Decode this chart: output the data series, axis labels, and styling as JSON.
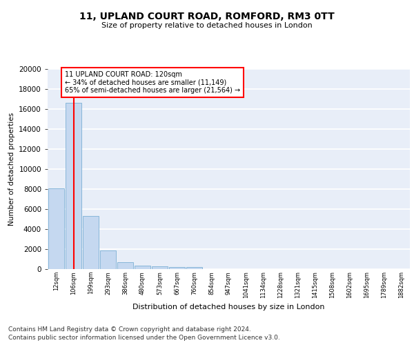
{
  "title1": "11, UPLAND COURT ROAD, ROMFORD, RM3 0TT",
  "title2": "Size of property relative to detached houses in London",
  "xlabel": "Distribution of detached houses by size in London",
  "ylabel": "Number of detached properties",
  "categories": [
    "12sqm",
    "106sqm",
    "199sqm",
    "293sqm",
    "386sqm",
    "480sqm",
    "573sqm",
    "667sqm",
    "760sqm",
    "854sqm",
    "947sqm",
    "1041sqm",
    "1134sqm",
    "1228sqm",
    "1321sqm",
    "1415sqm",
    "1508sqm",
    "1602sqm",
    "1695sqm",
    "1789sqm",
    "1882sqm"
  ],
  "values": [
    8100,
    16600,
    5300,
    1850,
    700,
    350,
    280,
    200,
    180,
    0,
    0,
    0,
    0,
    0,
    0,
    0,
    0,
    0,
    0,
    0,
    0
  ],
  "bar_color": "#c5d8f0",
  "bar_edge_color": "#7aafd4",
  "vline_x": 1.0,
  "vline_color": "red",
  "annotation_text": "11 UPLAND COURT ROAD: 120sqm\n← 34% of detached houses are smaller (11,149)\n65% of semi-detached houses are larger (21,564) →",
  "annotation_box_color": "white",
  "annotation_box_edge": "red",
  "ylim": [
    0,
    20000
  ],
  "yticks": [
    0,
    2000,
    4000,
    6000,
    8000,
    10000,
    12000,
    14000,
    16000,
    18000,
    20000
  ],
  "footer1": "Contains HM Land Registry data © Crown copyright and database right 2024.",
  "footer2": "Contains public sector information licensed under the Open Government Licence v3.0.",
  "bg_color": "#ffffff",
  "plot_bg_color": "#e8eef8"
}
